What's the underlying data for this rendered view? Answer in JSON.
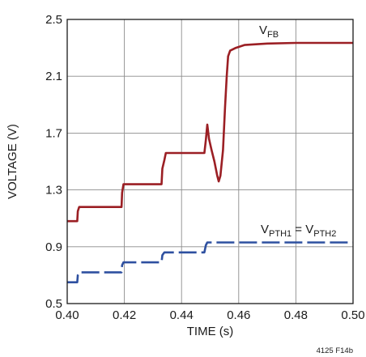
{
  "chart_data": {
    "type": "line",
    "xlabel": "TIME (s)",
    "ylabel": "VOLTAGE (V)",
    "xlim": [
      0.4,
      0.5
    ],
    "ylim": [
      0.5,
      2.5
    ],
    "x_ticks": [
      0.4,
      0.42,
      0.44,
      0.46,
      0.48,
      0.5
    ],
    "y_ticks": [
      0.5,
      0.9,
      1.3,
      1.7,
      2.1,
      2.5
    ],
    "x_tick_labels": [
      "0.40",
      "0.42",
      "0.44",
      "0.46",
      "0.48",
      "0.50"
    ],
    "y_tick_labels": [
      "0.5",
      "0.9",
      "1.3",
      "1.7",
      "2.1",
      "2.5"
    ],
    "grid": true,
    "series": [
      {
        "name_main": "V",
        "name_sub": "FB",
        "color": "#9b1f24",
        "style": "solid",
        "points": [
          [
            0.4,
            1.08
          ],
          [
            0.4035,
            1.08
          ],
          [
            0.4037,
            1.15
          ],
          [
            0.4042,
            1.18
          ],
          [
            0.419,
            1.18
          ],
          [
            0.4192,
            1.28
          ],
          [
            0.4197,
            1.34
          ],
          [
            0.433,
            1.34
          ],
          [
            0.4333,
            1.45
          ],
          [
            0.434,
            1.51
          ],
          [
            0.4345,
            1.56
          ],
          [
            0.448,
            1.56
          ],
          [
            0.4485,
            1.65
          ],
          [
            0.449,
            1.76
          ],
          [
            0.4496,
            1.66
          ],
          [
            0.4505,
            1.58
          ],
          [
            0.4515,
            1.5
          ],
          [
            0.4525,
            1.4
          ],
          [
            0.453,
            1.36
          ],
          [
            0.4536,
            1.4
          ],
          [
            0.4545,
            1.58
          ],
          [
            0.4552,
            1.88
          ],
          [
            0.4558,
            2.1
          ],
          [
            0.4563,
            2.24
          ],
          [
            0.457,
            2.28
          ],
          [
            0.459,
            2.3
          ],
          [
            0.462,
            2.32
          ],
          [
            0.47,
            2.33
          ],
          [
            0.48,
            2.335
          ],
          [
            0.5,
            2.335
          ]
        ]
      },
      {
        "name_main": "V",
        "name_sub": "PTH1",
        "name_mid": " = V",
        "name_sub2": "PTH2",
        "color": "#2e50a0",
        "style": "dashed",
        "points": [
          [
            0.4,
            0.65
          ],
          [
            0.4035,
            0.65
          ],
          [
            0.4037,
            0.7
          ],
          [
            0.4042,
            0.72
          ],
          [
            0.419,
            0.72
          ],
          [
            0.4192,
            0.77
          ],
          [
            0.4197,
            0.79
          ],
          [
            0.433,
            0.79
          ],
          [
            0.4333,
            0.84
          ],
          [
            0.434,
            0.86
          ],
          [
            0.448,
            0.86
          ],
          [
            0.4485,
            0.91
          ],
          [
            0.449,
            0.93
          ],
          [
            0.5,
            0.93
          ]
        ]
      }
    ],
    "figure_id": "4125 F14b"
  }
}
